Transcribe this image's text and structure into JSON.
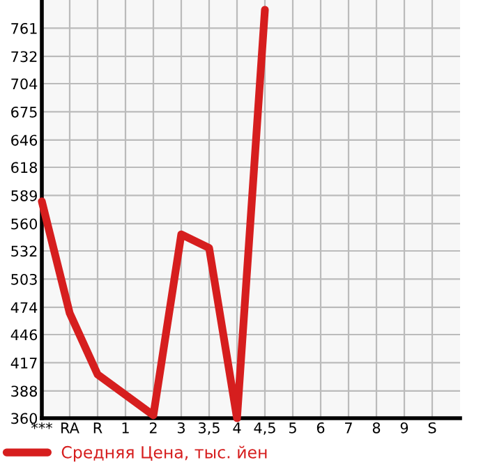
{
  "chart_data": {
    "type": "line",
    "categories": [
      "***",
      "RA",
      "R",
      "1",
      "2",
      "3",
      "3,5",
      "4",
      "4,5",
      "5",
      "6",
      "7",
      "8",
      "9",
      "S"
    ],
    "series": [
      {
        "name": "Средняя Цена, тыс. йен",
        "color": "#d61e1e",
        "values": [
          583,
          468,
          405,
          384,
          363,
          549,
          535,
          360,
          780,
          null,
          null,
          null,
          null,
          null,
          null
        ]
      }
    ],
    "ylim": [
      360,
      790
    ],
    "yticks": [
      360,
      388,
      417,
      446,
      474,
      503,
      532,
      560,
      589,
      618,
      646,
      675,
      704,
      732,
      761
    ],
    "grid": true,
    "legend": "bottom left",
    "marker": "none",
    "line_style": "solid"
  }
}
